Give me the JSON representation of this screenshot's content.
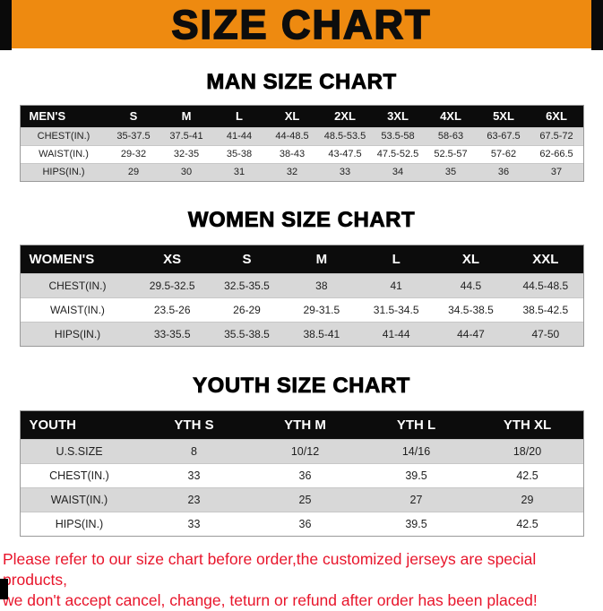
{
  "banner": {
    "title": "SIZE CHART",
    "bg_color": "#ee8a10",
    "text_color": "#0d0d0d"
  },
  "sections": [
    {
      "id": "men",
      "heading": "MAN SIZE CHART",
      "table": {
        "header": [
          "MEN'S",
          "S",
          "M",
          "L",
          "XL",
          "2XL",
          "3XL",
          "4XL",
          "5XL",
          "6XL"
        ],
        "rows": [
          [
            "CHEST(IN.)",
            "35-37.5",
            "37.5-41",
            "41-44",
            "44-48.5",
            "48.5-53.5",
            "53.5-58",
            "58-63",
            "63-67.5",
            "67.5-72"
          ],
          [
            "WAIST(IN.)",
            "29-32",
            "32-35",
            "35-38",
            "38-43",
            "43-47.5",
            "47.5-52.5",
            "52.5-57",
            "57-62",
            "62-66.5"
          ],
          [
            "HIPS(IN.)",
            "29",
            "30",
            "31",
            "32",
            "33",
            "34",
            "35",
            "36",
            "37"
          ]
        ]
      }
    },
    {
      "id": "women",
      "heading": "WOMEN SIZE CHART",
      "table": {
        "header": [
          "WOMEN'S",
          "XS",
          "S",
          "M",
          "L",
          "XL",
          "XXL"
        ],
        "rows": [
          [
            "CHEST(IN.)",
            "29.5-32.5",
            "32.5-35.5",
            "38",
            "41",
            "44.5",
            "44.5-48.5"
          ],
          [
            "WAIST(IN.)",
            "23.5-26",
            "26-29",
            "29-31.5",
            "31.5-34.5",
            "34.5-38.5",
            "38.5-42.5"
          ],
          [
            "HIPS(IN.)",
            "33-35.5",
            "35.5-38.5",
            "38.5-41",
            "41-44",
            "44-47",
            "47-50"
          ]
        ]
      }
    },
    {
      "id": "youth",
      "heading": "YOUTH SIZE CHART",
      "table": {
        "header": [
          "YOUTH",
          "YTH S",
          "YTH M",
          "YTH L",
          "YTH XL"
        ],
        "rows": [
          [
            "U.S.SIZE",
            "8",
            "10/12",
            "14/16",
            "18/20"
          ],
          [
            "CHEST(IN.)",
            "33",
            "36",
            "39.5",
            "42.5"
          ],
          [
            "WAIST(IN.)",
            "23",
            "25",
            "27",
            "29"
          ],
          [
            "HIPS(IN.)",
            "33",
            "36",
            "39.5",
            "42.5"
          ]
        ]
      }
    }
  ],
  "footer": {
    "color": "#e8152b",
    "lines": [
      "Please refer to our size chart before order,the customized jerseys are special products,",
      "we don't accept cancel, change, teturn or refund after order has been placed!"
    ]
  }
}
